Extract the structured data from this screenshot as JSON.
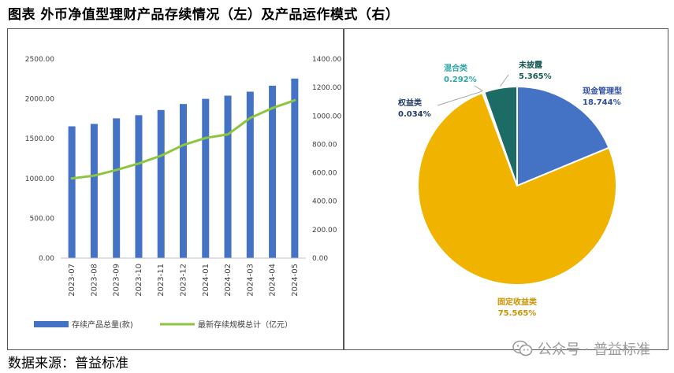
{
  "page_title": "图表  外币净值型理财产品存续情况（左）及产品运作模式（右）",
  "source": "数据来源：普益标准",
  "watermark": "公众号 · 普益标准",
  "chart_data": [
    {
      "type": "bar",
      "categories": [
        "2023-07",
        "2023-08",
        "2023-09",
        "2023-10",
        "2023-11",
        "2023-12",
        "2024-01",
        "2024-02",
        "2024-03",
        "2024-04",
        "2024-05"
      ],
      "series": [
        {
          "name": "存续产品总量(款)",
          "type": "bar",
          "axis": "left",
          "color": "#4472C4",
          "values": [
            1655,
            1685,
            1755,
            1795,
            1860,
            1935,
            2000,
            2040,
            2090,
            2165,
            2255
          ]
        },
        {
          "name": "最新存续规模总计（亿元）",
          "type": "line",
          "axis": "right",
          "color": "#8CC63F",
          "values": [
            560,
            580,
            620,
            665,
            720,
            795,
            845,
            870,
            985,
            1055,
            1110
          ]
        }
      ],
      "ylim_left": [
        0,
        2500
      ],
      "ylim_right": [
        0,
        1400
      ],
      "yticks_left": [
        "0.00",
        "500.00",
        "1000.00",
        "1500.00",
        "2000.00",
        "2500.00"
      ],
      "yticks_right": [
        "0.00",
        "200.00",
        "400.00",
        "600.00",
        "800.00",
        "1000.00",
        "1200.00",
        "1400.00"
      ],
      "legend_position": "bottom"
    },
    {
      "type": "pie",
      "slices": [
        {
          "label": "现金管理型",
          "pct": "18.744%",
          "value": 18.744,
          "color": "#4472C4",
          "text_color": "#2F4F9E"
        },
        {
          "label": "固定收益类",
          "pct": "75.565%",
          "value": 75.565,
          "color": "#F0B400",
          "text_color": "#C99200"
        },
        {
          "label": "权益类",
          "pct": "0.034%",
          "value": 0.034,
          "color": "#5B9BD5",
          "text_color": "#1F3864"
        },
        {
          "label": "混合类",
          "pct": "0.292%",
          "value": 0.292,
          "color": "#2EB8B8",
          "text_color": "#2AA6A6"
        },
        {
          "label": "未披露",
          "pct": "5.365%",
          "value": 5.365,
          "color": "#1C6B64",
          "text_color": "#155A54"
        }
      ]
    }
  ]
}
